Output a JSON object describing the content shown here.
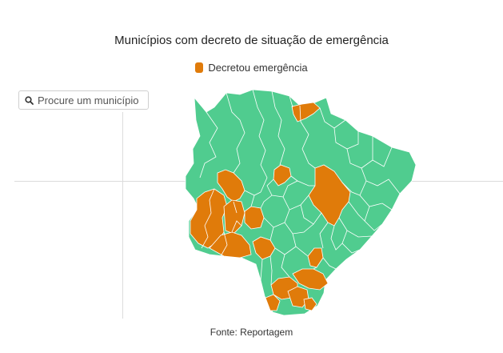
{
  "title": "Municípios com decreto de situação de emergência",
  "legend": {
    "label": "Decretou emergência",
    "color": "#e07b0a"
  },
  "search": {
    "placeholder": "Procure um município",
    "icon": "search-icon"
  },
  "colors": {
    "normal": "#50cc8f",
    "emergency": "#e07b0a",
    "border": "#ffffff"
  },
  "source": "Fonte: Reportagem"
}
